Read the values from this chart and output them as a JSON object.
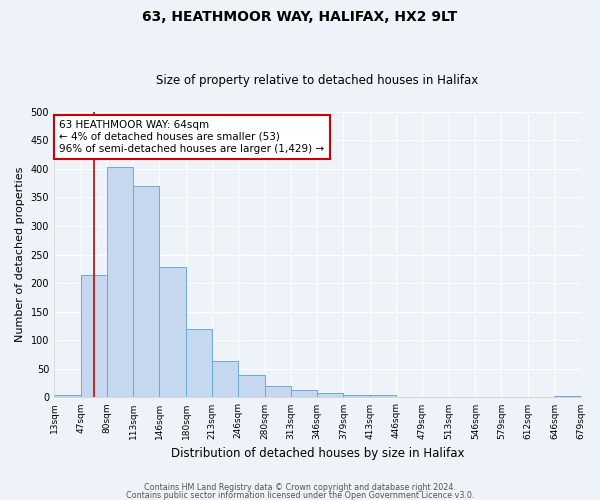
{
  "title": "63, HEATHMOOR WAY, HALIFAX, HX2 9LT",
  "subtitle": "Size of property relative to detached houses in Halifax",
  "xlabel": "Distribution of detached houses by size in Halifax",
  "ylabel": "Number of detached properties",
  "bin_edges": [
    13,
    47,
    80,
    113,
    146,
    180,
    213,
    246,
    280,
    313,
    346,
    379,
    413,
    446,
    479,
    513,
    546,
    579,
    612,
    646,
    679
  ],
  "bar_heights": [
    5,
    215,
    403,
    370,
    228,
    120,
    63,
    40,
    20,
    13,
    7,
    5,
    5,
    1,
    1,
    1,
    1,
    0,
    0,
    2
  ],
  "bar_color": "#c5d8f0",
  "bar_edge_color": "#6aaad4",
  "property_size": 64,
  "red_line_color": "#cc0000",
  "annotation_line1": "63 HEATHMOOR WAY: 64sqm",
  "annotation_line2": "← 4% of detached houses are smaller (53)",
  "annotation_line3": "96% of semi-detached houses are larger (1,429) →",
  "annotation_box_color": "#ffffff",
  "annotation_box_edge_color": "#cc0000",
  "ylim": [
    0,
    500
  ],
  "xlim_min": 13,
  "xlim_max": 679,
  "background_color": "#eef2f9",
  "plot_bg_color": "#eef2f9",
  "grid_color": "#ffffff",
  "footer_line1": "Contains HM Land Registry data © Crown copyright and database right 2024.",
  "footer_line2": "Contains public sector information licensed under the Open Government Licence v3.0.",
  "title_fontsize": 10,
  "subtitle_fontsize": 8.5,
  "ylabel_fontsize": 8,
  "xlabel_fontsize": 8.5,
  "tick_fontsize": 6.5,
  "footer_fontsize": 5.8
}
